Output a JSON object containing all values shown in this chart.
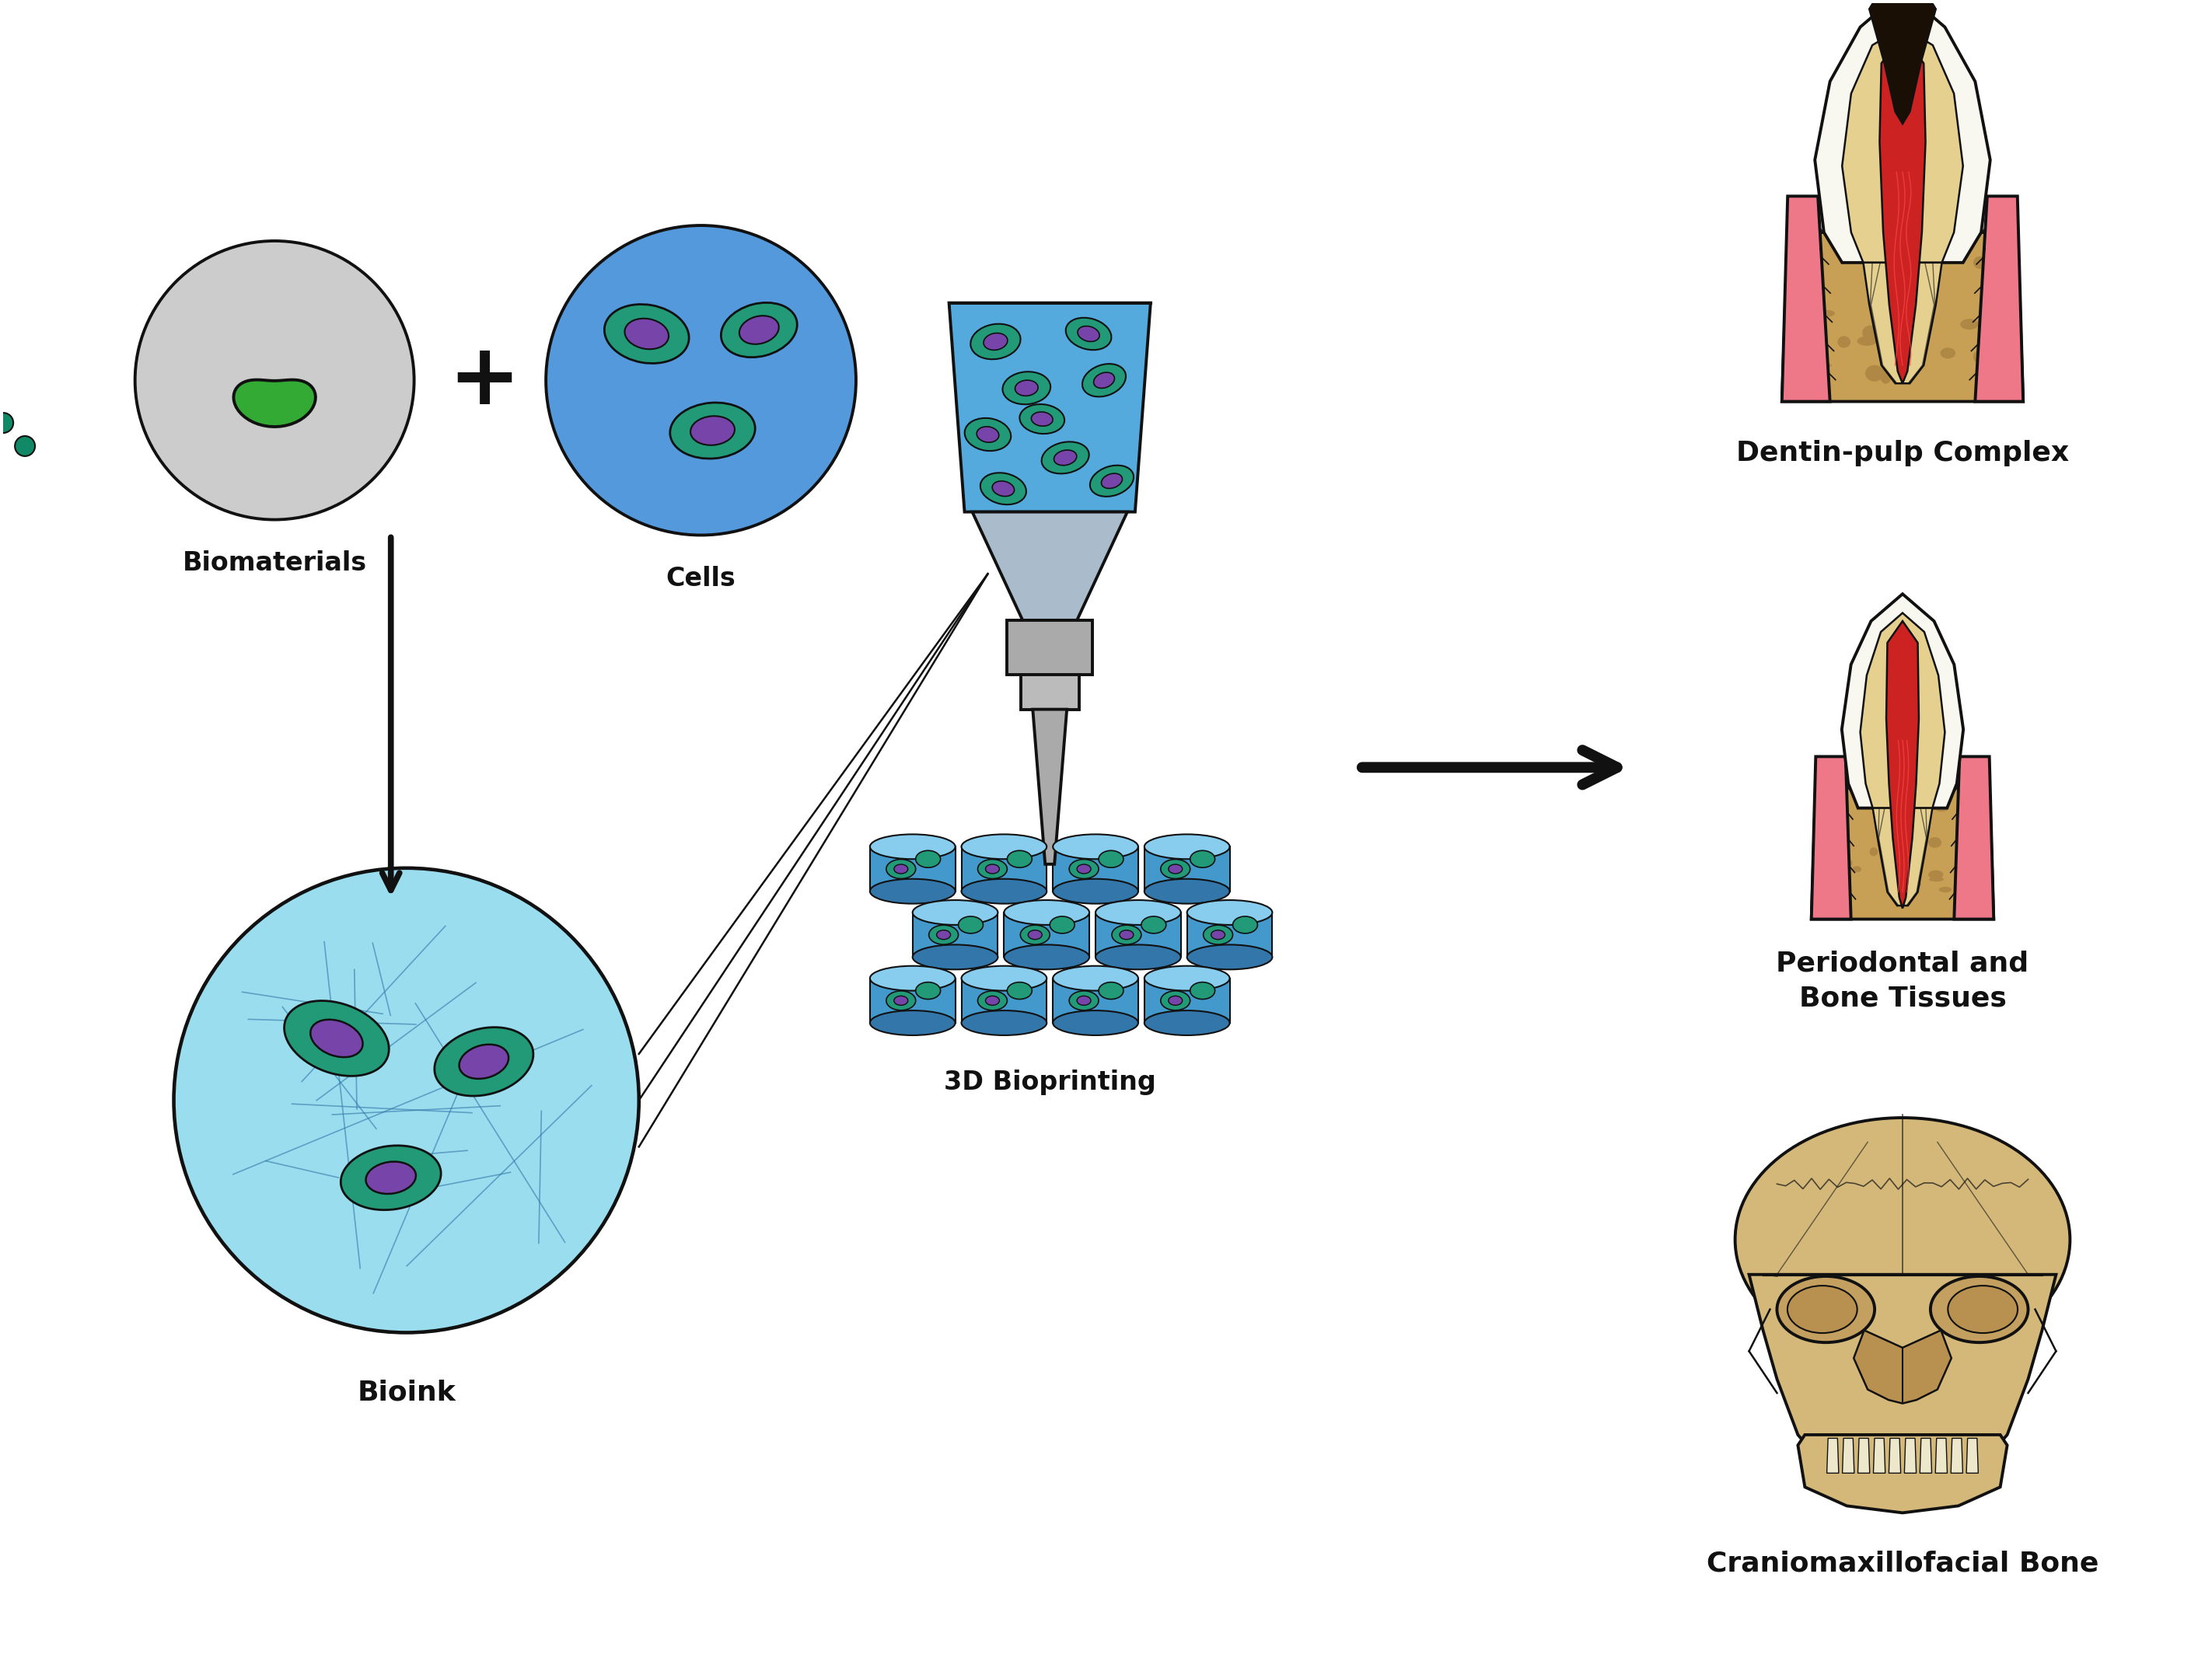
{
  "background_color": "#ffffff",
  "labels": {
    "biomaterials": "Biomaterials",
    "cells": "Cells",
    "bioink": "Bioink",
    "bioprinting": "3D Bioprinting",
    "dentin_pulp": "Dentin-pulp Complex",
    "periodontal": "Periodontal and\nBone Tissues",
    "craniomaxillofacial": "Craniomaxillofacial Bone"
  },
  "colors": {
    "gray_circle": "#cccccc",
    "green_drop": "#33aa33",
    "teal_dot": "#118866",
    "blue_cell_bg": "#5599dd",
    "teal_oval": "#229977",
    "purple_oval": "#7744aa",
    "bioink_bg": "#99ddee",
    "bioink_fiber": "#4488bb",
    "printer_blue": "#55aadd",
    "printer_light": "#88ccee",
    "printer_gray": "#aaaaaa",
    "printer_gray2": "#bbbbbb",
    "scaffold_blue": "#4499cc",
    "scaffold_dark": "#3377aa",
    "tooth_white": "#f8f8f0",
    "tooth_dentin": "#e5d090",
    "tooth_pulp": "#cc2222",
    "gum_pink": "#ee7788",
    "bone_tan": "#c8a055",
    "bone_spot": "#b08845",
    "decay_dark": "#1a0f05",
    "skull_color": "#d4b87a",
    "skull_dark": "#b89050",
    "skull_shadow": "#c0a065",
    "arrow_color": "#111111",
    "text_color": "#111111",
    "outline_color": "#111111"
  },
  "font_sizes": {
    "label": 20,
    "title": 22
  }
}
